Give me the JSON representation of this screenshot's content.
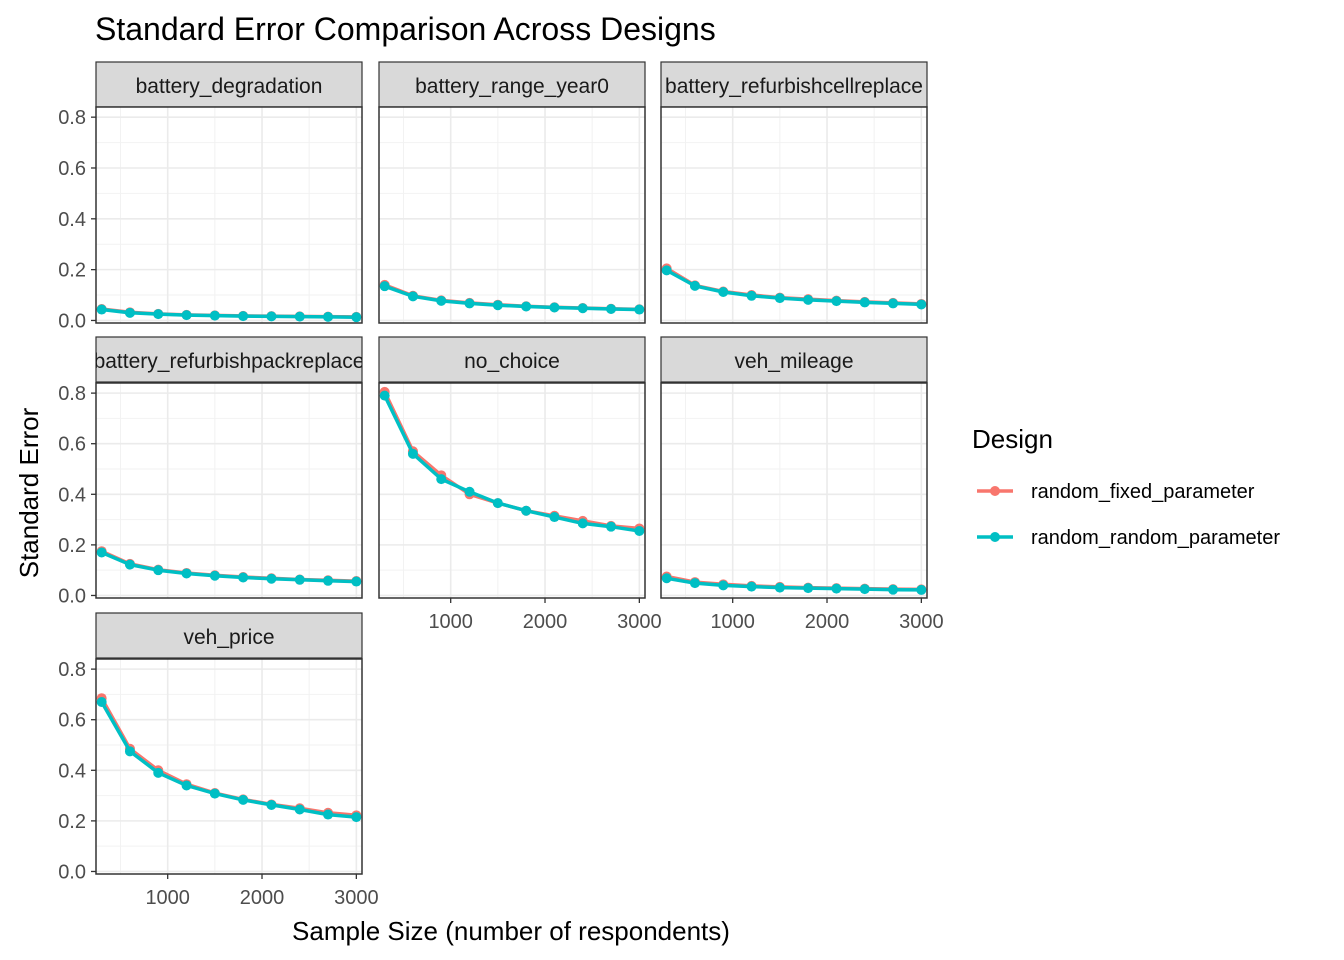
{
  "chart_data": {
    "type": "line",
    "title": "Standard Error Comparison Across Designs",
    "xlabel": "Sample Size (number of respondents)",
    "ylabel": "Standard Error",
    "x": [
      300,
      600,
      900,
      1200,
      1500,
      1800,
      2100,
      2400,
      2700,
      3000
    ],
    "xlim": [
      240,
      3060
    ],
    "ylim": [
      -0.01,
      0.84
    ],
    "x_ticks": [
      1000,
      2000,
      3000
    ],
    "x_tick_labels": [
      "1000",
      "2000",
      "3000"
    ],
    "y_ticks": [
      0.0,
      0.2,
      0.4,
      0.6,
      0.8
    ],
    "y_tick_labels": [
      "0.0",
      "0.2",
      "0.4",
      "0.6",
      "0.8"
    ],
    "grid": true,
    "legend": {
      "title": "Design",
      "position": "right",
      "entries": [
        "random_fixed_parameter",
        "random_random_parameter"
      ]
    },
    "colors": {
      "random_fixed_parameter": "#F8766D",
      "random_random_parameter": "#00BFC4"
    },
    "panels": [
      {
        "label": "battery_degradation",
        "series": [
          {
            "name": "random_fixed_parameter",
            "values": [
              0.045,
              0.032,
              0.026,
              0.022,
              0.02,
              0.018,
              0.017,
              0.016,
              0.015,
              0.014
            ]
          },
          {
            "name": "random_random_parameter",
            "values": [
              0.043,
              0.03,
              0.025,
              0.021,
              0.019,
              0.017,
              0.016,
              0.015,
              0.014,
              0.013
            ]
          }
        ]
      },
      {
        "label": "battery_range_year0",
        "series": [
          {
            "name": "random_fixed_parameter",
            "values": [
              0.14,
              0.097,
              0.079,
              0.069,
              0.062,
              0.056,
              0.052,
              0.049,
              0.046,
              0.044
            ]
          },
          {
            "name": "random_random_parameter",
            "values": [
              0.135,
              0.095,
              0.077,
              0.067,
              0.06,
              0.055,
              0.051,
              0.048,
              0.045,
              0.043
            ]
          }
        ]
      },
      {
        "label": "battery_refurbishcellreplace",
        "series": [
          {
            "name": "random_fixed_parameter",
            "values": [
              0.205,
              0.138,
              0.114,
              0.1,
              0.09,
              0.084,
              0.078,
              0.073,
              0.069,
              0.065
            ]
          },
          {
            "name": "random_random_parameter",
            "values": [
              0.197,
              0.136,
              0.112,
              0.097,
              0.088,
              0.081,
              0.076,
              0.071,
              0.067,
              0.063
            ]
          }
        ]
      },
      {
        "label": "battery_refurbishpackreplace",
        "series": [
          {
            "name": "random_fixed_parameter",
            "values": [
              0.175,
              0.125,
              0.102,
              0.089,
              0.08,
              0.073,
              0.068,
              0.063,
              0.06,
              0.057
            ]
          },
          {
            "name": "random_random_parameter",
            "values": [
              0.17,
              0.122,
              0.1,
              0.087,
              0.078,
              0.071,
              0.066,
              0.062,
              0.058,
              0.055
            ]
          }
        ]
      },
      {
        "label": "no_choice",
        "series": [
          {
            "name": "random_fixed_parameter",
            "values": [
              0.805,
              0.57,
              0.475,
              0.4,
              0.365,
              0.335,
              0.315,
              0.295,
              0.275,
              0.265
            ]
          },
          {
            "name": "random_random_parameter",
            "values": [
              0.79,
              0.56,
              0.46,
              0.41,
              0.365,
              0.335,
              0.31,
              0.285,
              0.272,
              0.255
            ]
          }
        ]
      },
      {
        "label": "veh_mileage",
        "series": [
          {
            "name": "random_fixed_parameter",
            "values": [
              0.075,
              0.053,
              0.044,
              0.038,
              0.034,
              0.031,
              0.029,
              0.027,
              0.025,
              0.024
            ]
          },
          {
            "name": "random_random_parameter",
            "values": [
              0.068,
              0.049,
              0.04,
              0.035,
              0.031,
              0.029,
              0.027,
              0.025,
              0.023,
              0.022
            ]
          }
        ]
      },
      {
        "label": "veh_price",
        "series": [
          {
            "name": "random_fixed_parameter",
            "values": [
              0.685,
              0.485,
              0.4,
              0.345,
              0.31,
              0.285,
              0.265,
              0.25,
              0.232,
              0.222
            ]
          },
          {
            "name": "random_random_parameter",
            "values": [
              0.67,
              0.475,
              0.39,
              0.34,
              0.308,
              0.283,
              0.263,
              0.245,
              0.225,
              0.215
            ]
          }
        ]
      }
    ]
  }
}
